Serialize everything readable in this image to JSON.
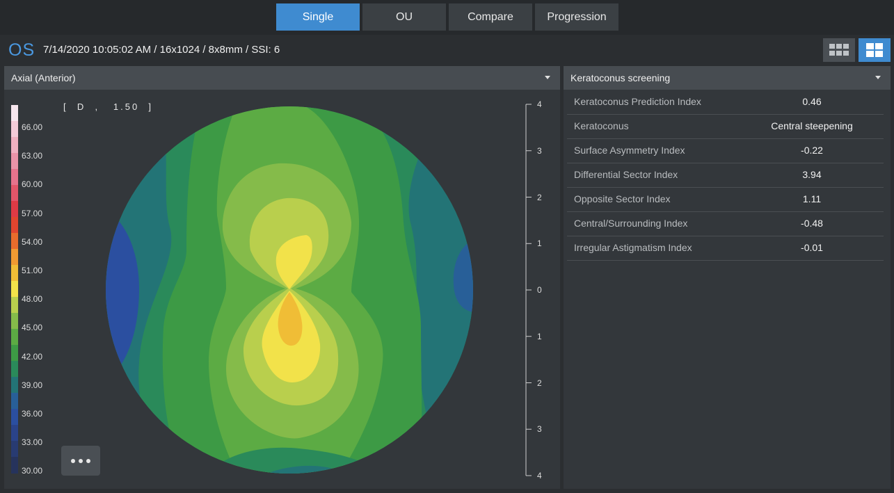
{
  "tabs": [
    {
      "label": "Single",
      "active": true
    },
    {
      "label": "OU",
      "active": false
    },
    {
      "label": "Compare",
      "active": false
    },
    {
      "label": "Progression",
      "active": false
    }
  ],
  "header": {
    "eye": "OS",
    "scan_info": "7/14/2020 10:05:02 AM / 16x1024 / 8x8mm / SSI: 6"
  },
  "view_toggle": [
    "grid-3x2-icon",
    "grid-2x2-icon"
  ],
  "map_panel": {
    "selector": "Axial (Anterior)",
    "unit_label": "[  D  ,   1.50  ]",
    "legend_values": [
      "66.00",
      "63.00",
      "60.00",
      "57.00",
      "54.00",
      "51.00",
      "48.00",
      "45.00",
      "42.00",
      "39.00",
      "36.00",
      "33.00",
      "30.00"
    ],
    "scale_labels": [
      "4",
      "3",
      "2",
      "1",
      "0",
      "1",
      "2",
      "3",
      "4"
    ],
    "more_button": "more-icon"
  },
  "screening_panel": {
    "selector": "Keratoconus screening",
    "rows": [
      {
        "label": "Keratoconus Prediction Index",
        "value": "0.46"
      },
      {
        "label": "Keratoconus",
        "value": "Central steepening"
      },
      {
        "label": "Surface Asymmetry Index",
        "value": "-0.22"
      },
      {
        "label": "Differential Sector Index",
        "value": "3.94"
      },
      {
        "label": "Opposite Sector Index",
        "value": "1.11"
      },
      {
        "label": "Central/Surrounding Index",
        "value": "-0.48"
      },
      {
        "label": "Irregular Astigmatism Index",
        "value": "-0.01"
      }
    ]
  },
  "colors": {
    "accent": "#3f8bd0",
    "legend": [
      "#f7e6ee",
      "#f3cbd8",
      "#efb0c0",
      "#ea93a8",
      "#e6738c",
      "#e25569",
      "#de3a45",
      "#e0452f",
      "#e86c2c",
      "#f09a32",
      "#f0bd36",
      "#f2e24a",
      "#b9cf4d",
      "#85bb4a",
      "#5cab44",
      "#3d9a45",
      "#2a8a5a",
      "#237476",
      "#285f98",
      "#2b4fa0",
      "#2a4389",
      "#283b72",
      "#26335c"
    ]
  }
}
